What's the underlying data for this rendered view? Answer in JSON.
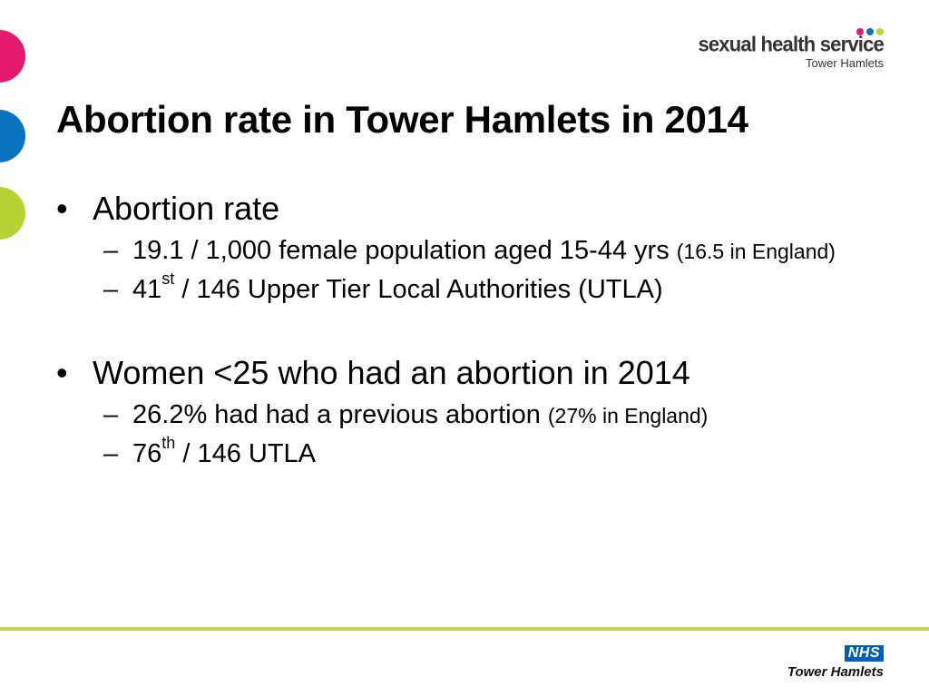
{
  "colors": {
    "pink": "#e21b6b",
    "blue": "#0a72bf",
    "green": "#b6d334",
    "rule": "#c4d64a",
    "nhs_blue": "#005eb8"
  },
  "logo": {
    "title": "sexual health service",
    "subtitle": "Tower Hamlets"
  },
  "slide": {
    "title": "Abortion rate in Tower Hamlets in 2014",
    "bullet_char": "•",
    "dash_char": "–",
    "sections": [
      {
        "heading": "Abortion rate",
        "items": [
          {
            "main": "19.1 / 1,000 female population aged 15-44 yrs",
            "note": "(16.5 in England)"
          },
          {
            "rank": "41",
            "suffix": "st",
            "rest": " / 146 Upper Tier Local Authorities (UTLA)"
          }
        ]
      },
      {
        "heading": "Women <25 who had an abortion in 2014",
        "items": [
          {
            "main": "26.2% had had a previous abortion",
            "note": "(27% in England)"
          },
          {
            "rank": "76",
            "suffix": "th",
            "rest": " / 146 UTLA"
          }
        ]
      }
    ]
  },
  "footer": {
    "badge": "NHS",
    "org": "Tower Hamlets"
  }
}
